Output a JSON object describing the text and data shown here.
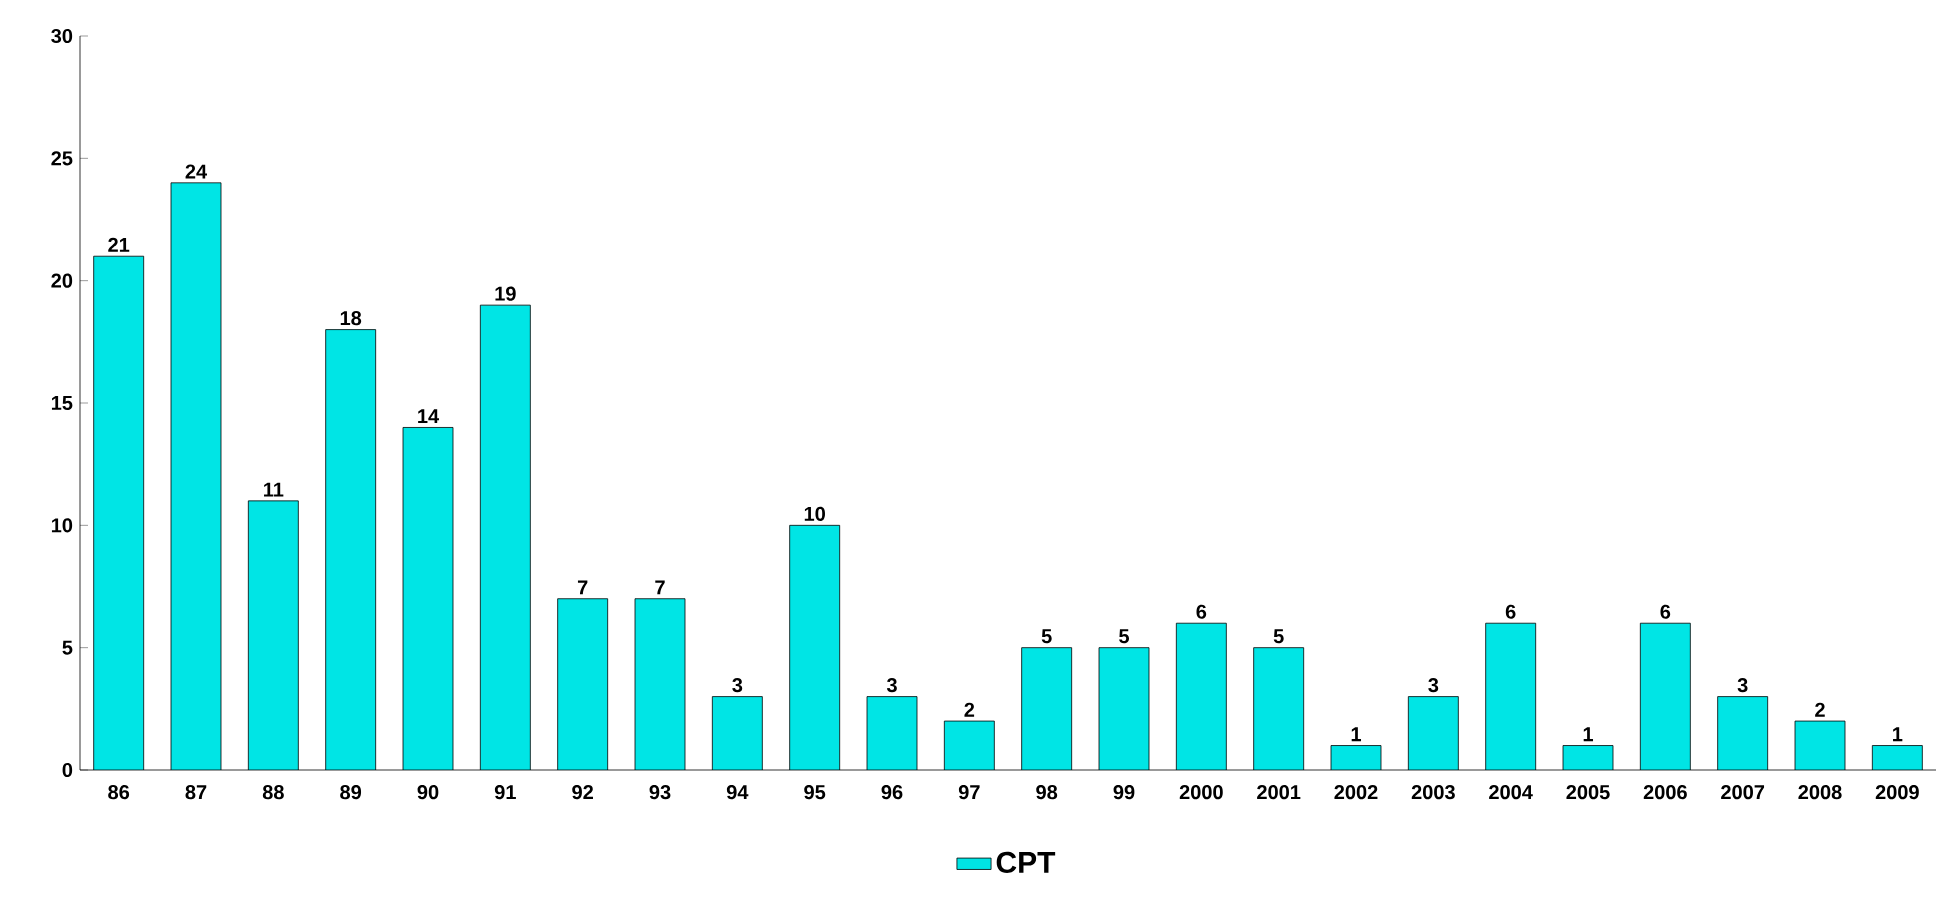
{
  "chart_data": {
    "type": "bar",
    "categories": [
      "86",
      "87",
      "88",
      "89",
      "90",
      "91",
      "92",
      "93",
      "94",
      "95",
      "96",
      "97",
      "98",
      "99",
      "2000",
      "2001",
      "2002",
      "2003",
      "2004",
      "2005",
      "2006",
      "2007",
      "2008",
      "2009"
    ],
    "series": [
      {
        "name": "CPT",
        "color": "#00e5e5",
        "values": [
          21,
          24,
          11,
          18,
          14,
          19,
          7,
          7,
          3,
          10,
          3,
          2,
          5,
          5,
          6,
          5,
          1,
          3,
          6,
          1,
          6,
          3,
          2,
          1
        ]
      }
    ],
    "ylim": [
      0,
      30
    ],
    "yticks": [
      0,
      5,
      10,
      15,
      20,
      25,
      30
    ],
    "data_labels": true,
    "grid": false,
    "legend": "bottom"
  }
}
